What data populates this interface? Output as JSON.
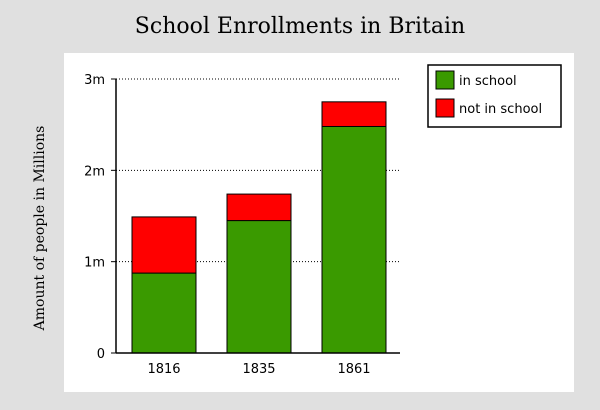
{
  "chart_data": {
    "type": "bar",
    "stacked": true,
    "title": "School Enrollments in Britain",
    "ylabel": "Amount of people in Millions",
    "xlabel": "",
    "categories": [
      "1816",
      "1835",
      "1861"
    ],
    "series": [
      {
        "name": "in school",
        "color": "#3a9a00",
        "values": [
          0.875,
          1.45,
          2.48
        ]
      },
      {
        "name": "not in school",
        "color": "#ff0000",
        "values": [
          0.615,
          0.29,
          0.27
        ]
      }
    ],
    "ylim": [
      0,
      3
    ],
    "yticks": [
      {
        "value": 0,
        "label": "0"
      },
      {
        "value": 1,
        "label": "1m"
      },
      {
        "value": 2,
        "label": "2m"
      },
      {
        "value": 3,
        "label": "3m"
      }
    ],
    "grid": "horizontal-dotted",
    "legend_position": "top-right"
  }
}
